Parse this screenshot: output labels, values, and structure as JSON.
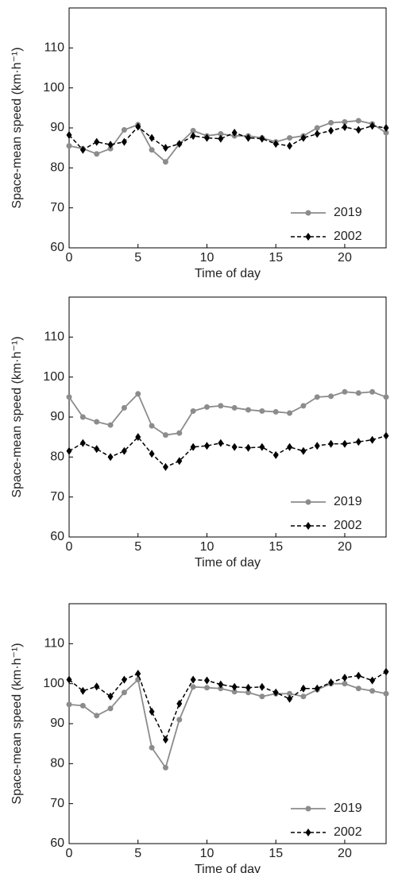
{
  "chart_data": [
    {
      "type": "line",
      "x_label": "Time of day",
      "y_label": "Space-mean speed (km·h⁻¹)",
      "x": [
        0,
        1,
        2,
        3,
        4,
        5,
        6,
        7,
        8,
        9,
        10,
        11,
        12,
        13,
        14,
        15,
        16,
        17,
        18,
        19,
        20,
        21,
        22,
        23
      ],
      "xlim": [
        0,
        23
      ],
      "xticks": [
        0,
        5,
        10,
        15,
        20
      ],
      "ylim": [
        60,
        120
      ],
      "yticks": [
        60,
        70,
        80,
        90,
        100,
        110
      ],
      "legend": "lower right",
      "series": [
        {
          "name": "2019",
          "color": "#8c8c8c",
          "values": [
            85.5,
            84.8,
            83.5,
            84.8,
            89.5,
            90.8,
            84.5,
            81.5,
            86,
            89.3,
            88,
            88.5,
            88,
            88,
            87.5,
            86.5,
            87.5,
            88,
            90,
            91.3,
            91.5,
            91.8,
            91,
            88.8
          ]
        },
        {
          "name": "2002",
          "color": "#000000",
          "values": [
            88.2,
            84.5,
            86.5,
            85.8,
            86.5,
            90.3,
            87.5,
            85,
            86,
            88,
            87.5,
            87.3,
            88.8,
            87.5,
            87.3,
            86,
            85.5,
            87.5,
            88.5,
            89.3,
            90.2,
            89.5,
            90.5,
            90
          ]
        }
      ]
    },
    {
      "type": "line",
      "x_label": "Time of day",
      "y_label": "Space-mean speed (km·h⁻¹)",
      "x": [
        0,
        1,
        2,
        3,
        4,
        5,
        6,
        7,
        8,
        9,
        10,
        11,
        12,
        13,
        14,
        15,
        16,
        17,
        18,
        19,
        20,
        21,
        22,
        23
      ],
      "xlim": [
        0,
        23
      ],
      "xticks": [
        0,
        5,
        10,
        15,
        20
      ],
      "ylim": [
        60,
        120
      ],
      "yticks": [
        60,
        70,
        80,
        90,
        100,
        110
      ],
      "legend": "lower right",
      "series": [
        {
          "name": "2019",
          "color": "#8c8c8c",
          "values": [
            95,
            90,
            88.8,
            88,
            92.3,
            95.8,
            87.8,
            85.5,
            86,
            91.5,
            92.5,
            92.8,
            92.3,
            91.8,
            91.5,
            91.3,
            91,
            92.8,
            95,
            95.2,
            96.3,
            96,
            96.3,
            95
          ]
        },
        {
          "name": "2002",
          "color": "#000000",
          "values": [
            81.5,
            83.5,
            82,
            80,
            81.5,
            85,
            80.8,
            77.5,
            79,
            82.5,
            82.8,
            83.5,
            82.5,
            82.3,
            82.5,
            80.5,
            82.5,
            81.5,
            82.8,
            83.3,
            83.3,
            83.8,
            84.3,
            85.3
          ]
        }
      ]
    },
    {
      "type": "line",
      "x_label": "Time of day",
      "y_label": "Space-mean speed (km·h⁻¹)",
      "x": [
        0,
        1,
        2,
        3,
        4,
        5,
        6,
        7,
        8,
        9,
        10,
        11,
        12,
        13,
        14,
        15,
        16,
        17,
        18,
        19,
        20,
        21,
        22,
        23
      ],
      "xlim": [
        0,
        23
      ],
      "xticks": [
        0,
        5,
        10,
        15,
        20
      ],
      "ylim": [
        60,
        120
      ],
      "yticks": [
        60,
        70,
        80,
        90,
        100,
        110
      ],
      "legend": "lower right",
      "series": [
        {
          "name": "2019",
          "color": "#8c8c8c",
          "values": [
            94.8,
            94.5,
            92,
            93.8,
            97.8,
            101,
            84,
            79,
            91,
            99.2,
            99,
            98.8,
            98,
            97.8,
            96.8,
            97.5,
            97.5,
            96.8,
            98.5,
            100,
            100,
            98.8,
            98.2,
            97.5
          ]
        },
        {
          "name": "2002",
          "color": "#000000",
          "values": [
            101,
            98.2,
            99.3,
            96.8,
            101,
            102.5,
            93,
            86,
            95,
            101,
            100.8,
            99.8,
            99.2,
            99,
            99.2,
            97.8,
            96.2,
            98.8,
            98.8,
            100.3,
            101.5,
            102,
            100.8,
            103
          ]
        }
      ]
    }
  ]
}
